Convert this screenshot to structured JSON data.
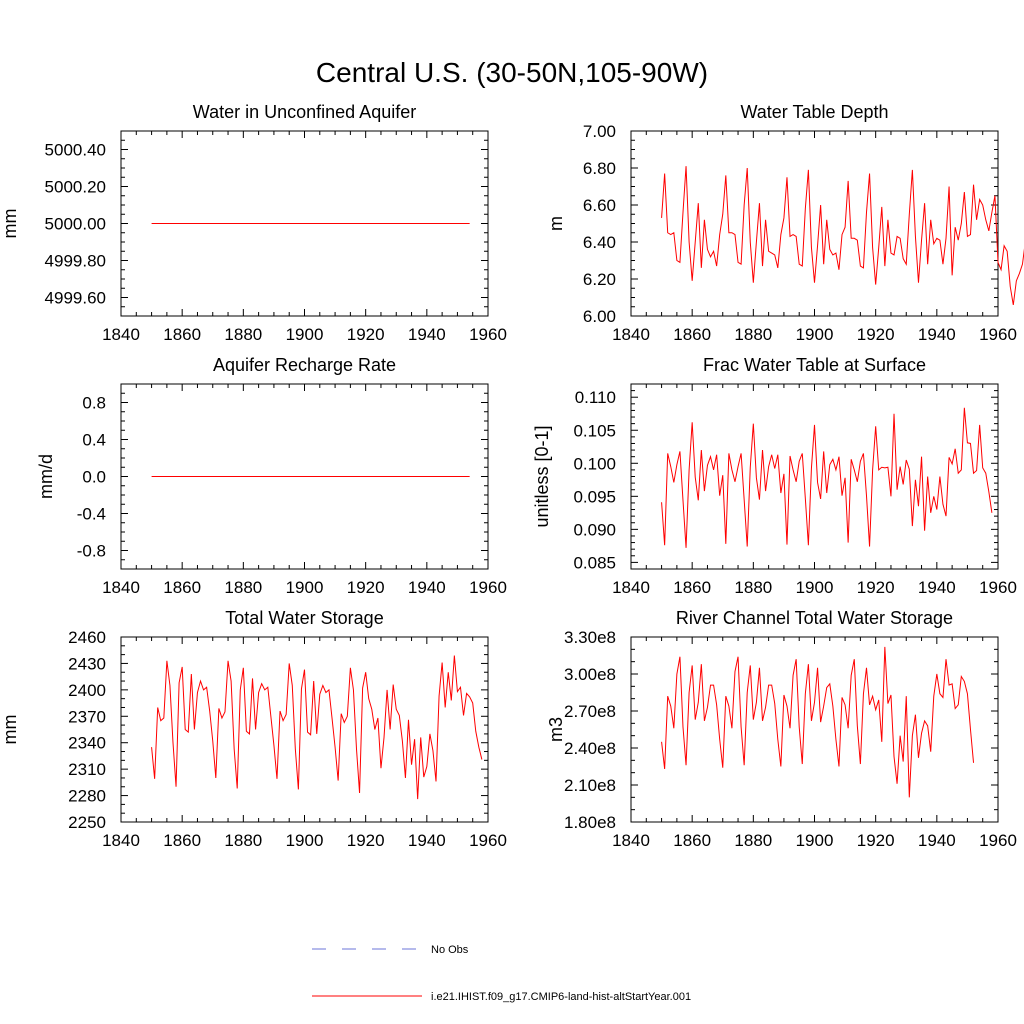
{
  "page": {
    "title": "Central U.S. (30-50N,105-90W)"
  },
  "colors": {
    "model": "#ff0000",
    "obs": "#6b74d8",
    "axes": "#000000",
    "background": "#ffffff"
  },
  "legend": {
    "items": [
      {
        "label": "No Obs",
        "style": "dashed",
        "color": "#6b74d8"
      },
      {
        "label": "i.e21.IHIST.f09_g17.CMIP6-land-hist-altStartYear.001",
        "style": "solid",
        "color": "#ff0000"
      }
    ]
  },
  "chart_data": [
    {
      "type": "line",
      "title": "Water in Unconfined Aquifer",
      "xlabel": "",
      "ylabel": "mm",
      "xlim": [
        1840,
        1960
      ],
      "ylim": [
        4999.5,
        5000.5
      ],
      "xticks": [
        1840,
        1860,
        1880,
        1900,
        1920,
        1940,
        1960
      ],
      "yticks": [
        4999.6,
        4999.8,
        5000.0,
        5000.2,
        5000.4
      ],
      "ytick_labels": [
        "4999.60",
        "4999.80",
        "5000.00",
        "5000.20",
        "5000.40"
      ],
      "x_minor_step": 5,
      "y_minor_step": 0.05,
      "series": [
        {
          "x": [
            1850,
            1954
          ],
          "values": [
            5000.0,
            5000.0
          ]
        }
      ]
    },
    {
      "type": "line",
      "title": "Water Table Depth",
      "xlabel": "",
      "ylabel": "m",
      "xlim": [
        1840,
        1960
      ],
      "ylim": [
        6.0,
        7.0
      ],
      "xticks": [
        1840,
        1860,
        1880,
        1900,
        1920,
        1940,
        1960
      ],
      "yticks": [
        6.0,
        6.2,
        6.4,
        6.6,
        6.8,
        7.0
      ],
      "ytick_labels": [
        "6.00",
        "6.20",
        "6.40",
        "6.60",
        "6.80",
        "7.00"
      ],
      "x_minor_step": 5,
      "y_minor_step": 0.05,
      "series": [
        {
          "x0": 1850,
          "dx": 1,
          "values": [
            6.53,
            6.77,
            6.45,
            6.44,
            6.45,
            6.3,
            6.29,
            6.56,
            6.81,
            6.4,
            6.19,
            6.4,
            6.61,
            6.26,
            6.52,
            6.36,
            6.32,
            6.35,
            6.27,
            6.44,
            6.55,
            6.76,
            6.45,
            6.45,
            6.44,
            6.29,
            6.28,
            6.6,
            6.8,
            6.4,
            6.18,
            6.4,
            6.61,
            6.27,
            6.52,
            6.35,
            6.34,
            6.33,
            6.26,
            6.44,
            6.53,
            6.75,
            6.43,
            6.44,
            6.43,
            6.28,
            6.27,
            6.58,
            6.79,
            6.37,
            6.18,
            6.38,
            6.6,
            6.28,
            6.52,
            6.36,
            6.33,
            6.34,
            6.25,
            6.44,
            6.48,
            6.73,
            6.42,
            6.42,
            6.41,
            6.27,
            6.26,
            6.56,
            6.77,
            6.37,
            6.17,
            6.37,
            6.59,
            6.27,
            6.52,
            6.34,
            6.33,
            6.43,
            6.42,
            6.31,
            6.28,
            6.55,
            6.79,
            6.43,
            6.18,
            6.41,
            6.61,
            6.28,
            6.52,
            6.39,
            6.42,
            6.41,
            6.28,
            6.42,
            6.7,
            6.22,
            6.48,
            6.41,
            6.5,
            6.67,
            6.43,
            6.44,
            6.71,
            6.52,
            6.63,
            6.6,
            6.52,
            6.46,
            6.56,
            6.65,
            6.29,
            6.25,
            6.38,
            6.35,
            6.16,
            6.06,
            6.19,
            6.23,
            6.28,
            6.41,
            6.4,
            6.3,
            6.35,
            6.36,
            6.42,
            6.56
          ]
        }
      ]
    },
    {
      "type": "line",
      "title": "Aquifer Recharge Rate",
      "xlabel": "",
      "ylabel": "mm/d",
      "xlim": [
        1840,
        1960
      ],
      "ylim": [
        -1.0,
        1.0
      ],
      "xticks": [
        1840,
        1860,
        1880,
        1900,
        1920,
        1940,
        1960
      ],
      "yticks": [
        -0.8,
        -0.4,
        0.0,
        0.4,
        0.8
      ],
      "ytick_labels": [
        "-0.8",
        "-0.4",
        "0.0",
        "0.4",
        "0.8"
      ],
      "x_minor_step": 5,
      "y_minor_step": 0.1,
      "series": [
        {
          "x": [
            1850,
            1954
          ],
          "values": [
            0.0,
            0.0
          ]
        }
      ]
    },
    {
      "type": "line",
      "title": "Frac Water Table at Surface",
      "xlabel": "",
      "ylabel": "unitless [0-1]",
      "xlim": [
        1840,
        1960
      ],
      "ylim": [
        0.084,
        0.112
      ],
      "xticks": [
        1840,
        1860,
        1880,
        1900,
        1920,
        1940,
        1960
      ],
      "yticks": [
        0.085,
        0.09,
        0.095,
        0.1,
        0.105,
        0.11
      ],
      "ytick_labels": [
        "0.085",
        "0.090",
        "0.095",
        "0.100",
        "0.105",
        "0.110"
      ],
      "x_minor_step": 5,
      "y_minor_step": 0.001,
      "series": [
        {
          "x0": 1850,
          "dx": 1,
          "values": [
            0.0941,
            0.0876,
            0.1015,
            0.0995,
            0.0971,
            0.0998,
            0.1018,
            0.0944,
            0.0872,
            0.099,
            0.1062,
            0.0979,
            0.0944,
            0.102,
            0.0958,
            0.0997,
            0.101,
            0.099,
            0.1013,
            0.0951,
            0.0982,
            0.0878,
            0.1015,
            0.099,
            0.0972,
            0.0995,
            0.1015,
            0.0945,
            0.0874,
            0.0994,
            0.106,
            0.0978,
            0.0945,
            0.102,
            0.0958,
            0.0995,
            0.1013,
            0.0992,
            0.1013,
            0.0955,
            0.0984,
            0.0877,
            0.1011,
            0.099,
            0.0972,
            0.1003,
            0.1015,
            0.0947,
            0.0876,
            0.0993,
            0.1058,
            0.0971,
            0.0946,
            0.1018,
            0.0955,
            0.0998,
            0.1006,
            0.099,
            0.101,
            0.0951,
            0.0978,
            0.088,
            0.1006,
            0.099,
            0.0972,
            0.1003,
            0.1015,
            0.0951,
            0.0874,
            0.099,
            0.1056,
            0.099,
            0.0994,
            0.0993,
            0.0994,
            0.095,
            0.1075,
            0.096,
            0.0995,
            0.0968,
            0.1005,
            0.0991,
            0.0905,
            0.0975,
            0.0935,
            0.101,
            0.0898,
            0.098,
            0.0925,
            0.095,
            0.093,
            0.098,
            0.0938,
            0.092,
            0.1009,
            0.0999,
            0.1022,
            0.0985,
            0.099,
            0.1084,
            0.1031,
            0.103,
            0.0985,
            0.0989,
            0.1058,
            0.0993,
            0.0985,
            0.0957,
            0.0925
          ]
        }
      ]
    },
    {
      "type": "line",
      "title": "Total Water Storage",
      "xlabel": "",
      "ylabel": "mm",
      "xlim": [
        1840,
        1960
      ],
      "ylim": [
        2250,
        2460
      ],
      "xticks": [
        1840,
        1860,
        1880,
        1900,
        1920,
        1940,
        1960
      ],
      "yticks": [
        2250,
        2280,
        2310,
        2340,
        2370,
        2400,
        2430,
        2460
      ],
      "ytick_labels": [
        "2250",
        "2280",
        "2310",
        "2340",
        "2370",
        "2400",
        "2430",
        "2460"
      ],
      "x_minor_step": 5,
      "y_minor_step": 10,
      "series": [
        {
          "x0": 1850,
          "dx": 1,
          "values": [
            2335,
            2299,
            2380,
            2365,
            2368,
            2433,
            2405,
            2340,
            2290,
            2408,
            2426,
            2355,
            2352,
            2418,
            2355,
            2397,
            2410,
            2400,
            2403,
            2376,
            2342,
            2300,
            2379,
            2368,
            2375,
            2433,
            2410,
            2333,
            2288,
            2400,
            2425,
            2353,
            2350,
            2413,
            2355,
            2397,
            2407,
            2400,
            2403,
            2370,
            2337,
            2299,
            2376,
            2365,
            2372,
            2430,
            2405,
            2333,
            2287,
            2401,
            2423,
            2352,
            2349,
            2410,
            2350,
            2395,
            2405,
            2397,
            2400,
            2368,
            2335,
            2297,
            2373,
            2363,
            2370,
            2425,
            2400,
            2333,
            2283,
            2402,
            2420,
            2390,
            2378,
            2355,
            2368,
            2311,
            2346,
            2400,
            2355,
            2406,
            2378,
            2371,
            2342,
            2300,
            2366,
            2315,
            2344,
            2276,
            2346,
            2301,
            2313,
            2350,
            2331,
            2296,
            2393,
            2431,
            2380,
            2420,
            2388,
            2439,
            2398,
            2403,
            2371,
            2396,
            2392,
            2385,
            2353,
            2335,
            2321
          ]
        }
      ]
    },
    {
      "type": "line",
      "title": "River Channel Total Water Storage",
      "xlabel": "",
      "ylabel": "m3",
      "xlim": [
        1840,
        1960
      ],
      "ylim": [
        180000000,
        330000000
      ],
      "xticks": [
        1840,
        1860,
        1880,
        1900,
        1920,
        1940,
        1960
      ],
      "yticks": [
        180000000,
        210000000,
        240000000,
        270000000,
        300000000,
        330000000
      ],
      "ytick_labels": [
        "1.80e8",
        "2.10e8",
        "2.40e8",
        "2.70e8",
        "3.00e8",
        "3.30e8"
      ],
      "x_minor_step": 5,
      "y_minor_step": 10000000,
      "series": [
        {
          "x0": 1850,
          "dx": 1,
          "values": [
            245000000,
            223000000,
            282000000,
            274000000,
            256000000,
            300000000,
            314000000,
            257000000,
            226000000,
            285000000,
            307000000,
            263000000,
            277000000,
            308000000,
            262000000,
            273000000,
            291000000,
            291000000,
            275000000,
            247000000,
            224000000,
            282000000,
            274000000,
            256000000,
            302000000,
            314000000,
            257000000,
            226000000,
            285000000,
            307000000,
            263000000,
            277000000,
            305000000,
            262000000,
            273000000,
            291000000,
            291000000,
            276000000,
            247000000,
            225000000,
            283000000,
            274000000,
            256000000,
            299000000,
            312000000,
            257000000,
            227000000,
            284000000,
            308000000,
            262000000,
            277000000,
            305000000,
            261000000,
            274000000,
            289000000,
            292000000,
            274000000,
            247000000,
            225000000,
            281000000,
            275000000,
            256000000,
            299000000,
            312000000,
            258000000,
            227000000,
            284000000,
            305000000,
            275000000,
            282000000,
            271000000,
            279000000,
            245000000,
            322000000,
            276000000,
            283000000,
            233000000,
            211000000,
            250000000,
            229000000,
            282000000,
            200000000,
            250000000,
            267000000,
            232000000,
            252000000,
            262000000,
            258000000,
            237000000,
            282000000,
            300000000,
            284000000,
            281000000,
            312000000,
            291000000,
            292000000,
            272000000,
            275000000,
            298000000,
            294000000,
            284000000,
            255000000,
            228000000
          ]
        }
      ]
    }
  ]
}
